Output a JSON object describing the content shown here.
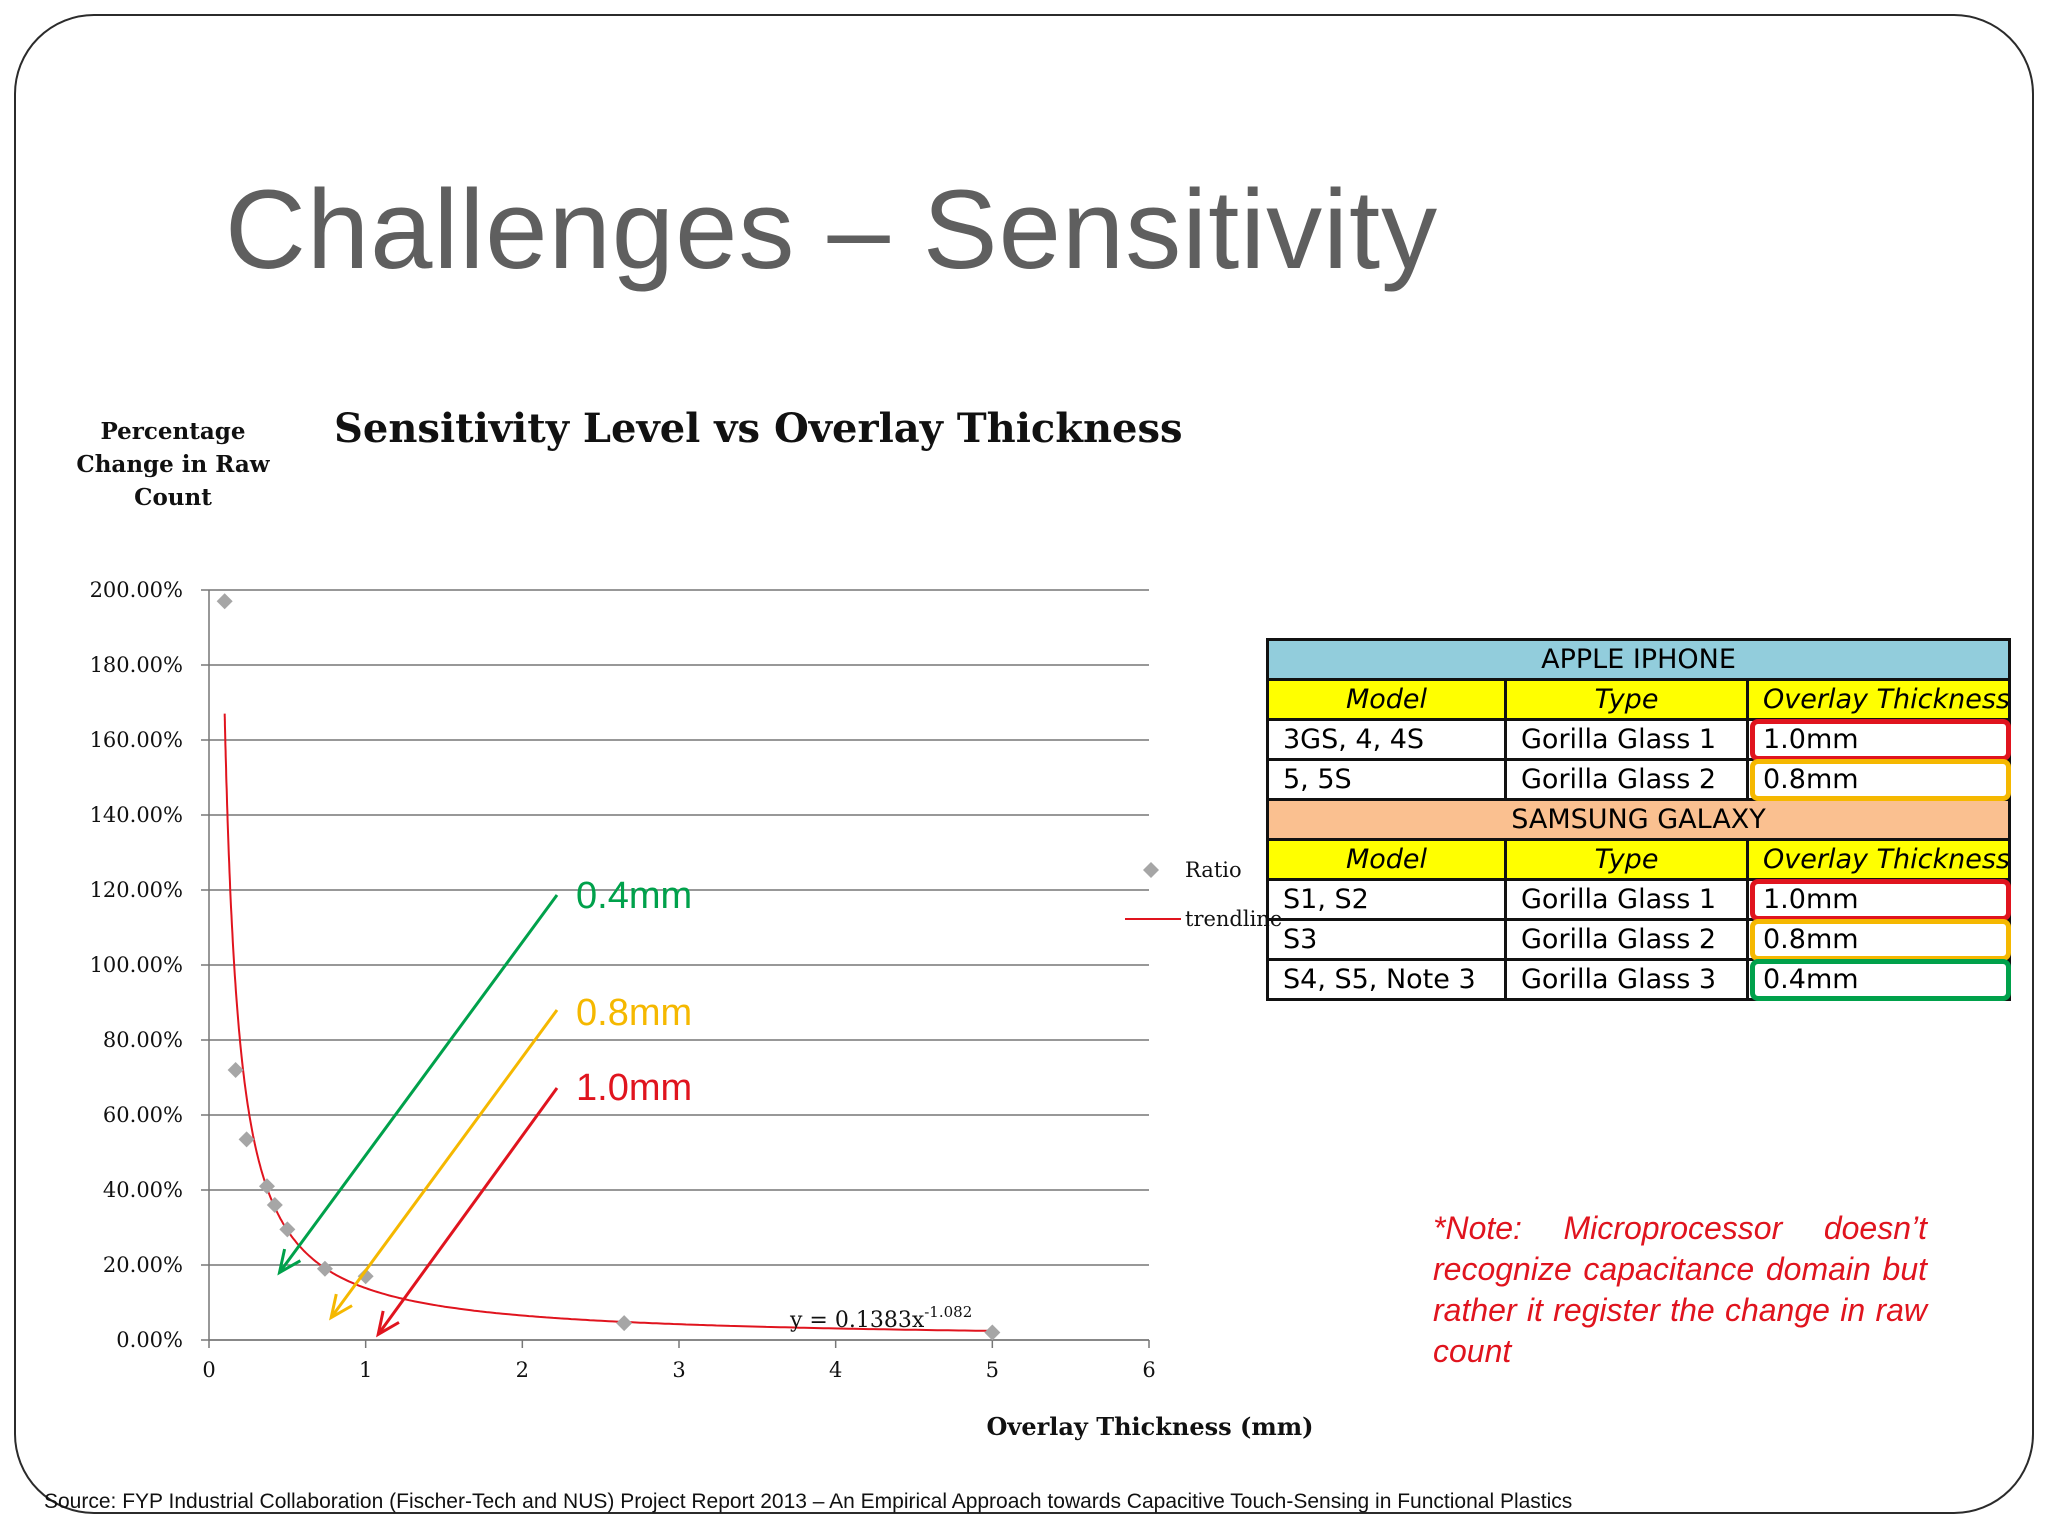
{
  "slide": {
    "title": "Challenges – Sensitivity",
    "note": "*Note: Microprocessor doesn’t recognize capacitance domain but rather it register the change in raw count",
    "source": "Source: FYP Industrial Collaboration (Fischer-Tech and NUS) Project Report 2013 – An Empirical Approach towards Capacitive Touch-Sensing in Functional Plastics"
  },
  "chart_data": {
    "type": "scatter",
    "title": "Sensitivity Level vs Overlay Thickness",
    "xlabel": "Overlay Thickness (mm)",
    "ylabel": "Percentage Change in Raw Count",
    "xlim": [
      0,
      6
    ],
    "ylim": [
      0,
      2
    ],
    "x_ticks": [
      "0",
      "1",
      "2",
      "3",
      "4",
      "5",
      "6"
    ],
    "y_ticks": [
      "0.00%",
      "20.00%",
      "40.00%",
      "60.00%",
      "80.00%",
      "100.00%",
      "120.00%",
      "140.00%",
      "160.00%",
      "180.00%",
      "200.00%"
    ],
    "grid": "horizontal",
    "series": [
      {
        "name": "Ratio",
        "marker": "diamond",
        "color": "#a6a6a6",
        "points": [
          [
            0.1,
            1.97
          ],
          [
            0.17,
            0.72
          ],
          [
            0.24,
            0.535
          ],
          [
            0.37,
            0.41
          ],
          [
            0.42,
            0.36
          ],
          [
            0.5,
            0.295
          ],
          [
            0.74,
            0.19
          ],
          [
            1.0,
            0.17
          ],
          [
            2.65,
            0.045
          ],
          [
            5.0,
            0.02
          ]
        ]
      },
      {
        "name": "trendline",
        "type": "power",
        "color": "#e0141e",
        "a": 0.1383,
        "b": -1.082,
        "x_range": [
          0.1,
          5.0
        ]
      }
    ],
    "equation": "y = 0.1383x",
    "equation_exponent": "-1.082",
    "legend": "right",
    "annotations": [
      {
        "label": "0.4mm",
        "color": "#00a14b",
        "target": [
          0.45,
          0.18
        ]
      },
      {
        "label": "0.8mm",
        "color": "#f5b800",
        "target": [
          0.78,
          0.06
        ]
      },
      {
        "label": "1.0mm",
        "color": "#e0141e",
        "target": [
          1.08,
          0.015
        ]
      }
    ]
  },
  "table": {
    "sections": [
      {
        "header": "APPLE IPHONE",
        "header_color": "#92cddc",
        "columns": [
          "Model",
          "Type",
          "Overlay Thickness"
        ],
        "rows": [
          {
            "model": "3GS, 4, 4S",
            "type": "Gorilla Glass 1",
            "thickness": "1.0mm",
            "highlight": "#e0141e"
          },
          {
            "model": "5, 5S",
            "type": "Gorilla Glass 2",
            "thickness": "0.8mm",
            "highlight": "#f5b800"
          }
        ]
      },
      {
        "header": "SAMSUNG GALAXY",
        "header_color": "#fac090",
        "columns": [
          "Model",
          "Type",
          "Overlay Thickness"
        ],
        "rows": [
          {
            "model": "S1, S2",
            "type": "Gorilla Glass 1",
            "thickness": "1.0mm",
            "highlight": "#e0141e"
          },
          {
            "model": "S3",
            "type": "Gorilla Glass 2",
            "thickness": "0.8mm",
            "highlight": "#f5b800"
          },
          {
            "model": "S4, S5, Note 3",
            "type": "Gorilla Glass 3",
            "thickness": "0.4mm",
            "highlight": "#00a14b"
          }
        ]
      }
    ]
  }
}
